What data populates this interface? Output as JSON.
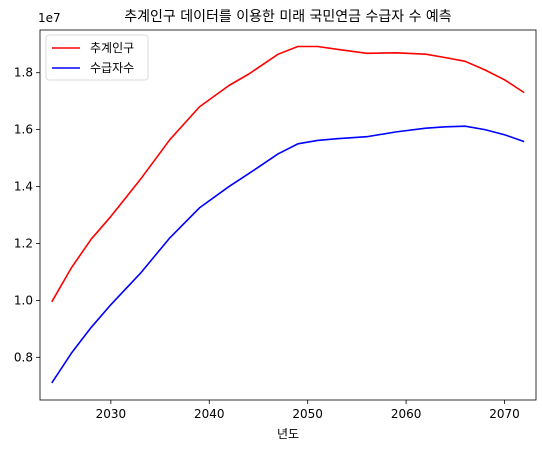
{
  "chart_data": {
    "type": "line",
    "title": "추계인구 데이터를 이용한 미래 국민연금 수급자 수 예측",
    "xlabel": "년도",
    "ylabel": "",
    "y_offset_label": "1e7",
    "xlim": [
      2022.8,
      2073.2
    ],
    "ylim": [
      6500000,
      19500000
    ],
    "x_ticks": [
      2030,
      2040,
      2050,
      2060,
      2070
    ],
    "y_ticks": [
      8000000,
      10000000,
      12000000,
      14000000,
      16000000,
      18000000
    ],
    "y_tick_labels": [
      "0.8",
      "1.0",
      "1.2",
      "1.4",
      "1.6",
      "1.8"
    ],
    "grid": false,
    "legend_position": "top-left",
    "x": [
      2024,
      2026,
      2028,
      2030,
      2033,
      2036,
      2039,
      2042,
      2044,
      2047,
      2049,
      2051,
      2053,
      2056,
      2059,
      2062,
      2064,
      2066,
      2068,
      2070,
      2072
    ],
    "series": [
      {
        "name": "추계인구",
        "color": "#ff0000",
        "values": [
          9950000,
          11150000,
          12150000,
          12950000,
          14250000,
          15650000,
          16800000,
          17550000,
          17950000,
          18650000,
          18920000,
          18920000,
          18820000,
          18680000,
          18700000,
          18650000,
          18530000,
          18400000,
          18100000,
          17750000,
          17300000
        ]
      },
      {
        "name": "수급자수",
        "color": "#0000ff",
        "values": [
          7100000,
          8150000,
          9050000,
          9850000,
          10950000,
          12200000,
          13250000,
          14000000,
          14450000,
          15150000,
          15500000,
          15620000,
          15680000,
          15750000,
          15920000,
          16050000,
          16100000,
          16120000,
          16000000,
          15820000,
          15580000
        ]
      }
    ]
  }
}
